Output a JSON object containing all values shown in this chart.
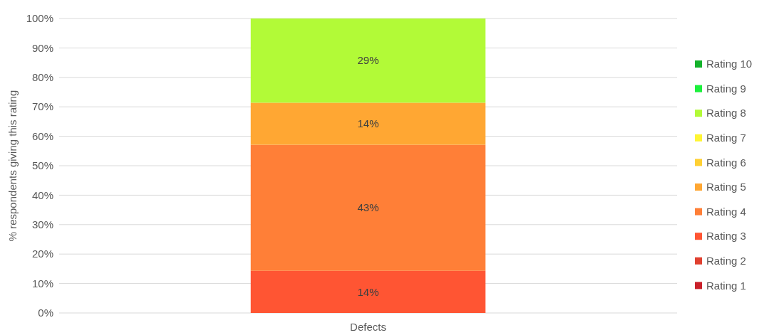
{
  "chart_data": {
    "type": "bar",
    "stacked": true,
    "ylabel": "% respondents giving this rating",
    "categories": [
      "Defects"
    ],
    "series": [
      {
        "name": "Rating 1",
        "color": "#c9202a",
        "values": [
          0
        ],
        "value_labels": [
          null
        ]
      },
      {
        "name": "Rating 2",
        "color": "#e0402f",
        "values": [
          0
        ],
        "value_labels": [
          null
        ]
      },
      {
        "name": "Rating 3",
        "color": "#ff5533",
        "values": [
          14.3
        ],
        "value_labels": [
          "14%"
        ]
      },
      {
        "name": "Rating 4",
        "color": "#ff7f37",
        "values": [
          42.8
        ],
        "value_labels": [
          "43%"
        ]
      },
      {
        "name": "Rating 5",
        "color": "#ffa733",
        "values": [
          14.3
        ],
        "value_labels": [
          "14%"
        ]
      },
      {
        "name": "Rating 6",
        "color": "#ffd033",
        "values": [
          0
        ],
        "value_labels": [
          null
        ]
      },
      {
        "name": "Rating 7",
        "color": "#fff533",
        "values": [
          0
        ],
        "value_labels": [
          null
        ]
      },
      {
        "name": "Rating 8",
        "color": "#b2fa37",
        "values": [
          28.6
        ],
        "value_labels": [
          "29%"
        ]
      },
      {
        "name": "Rating 9",
        "color": "#1cf03c",
        "values": [
          0
        ],
        "value_labels": [
          null
        ]
      },
      {
        "name": "Rating 10",
        "color": "#14b22b",
        "values": [
          0
        ],
        "value_labels": [
          null
        ]
      }
    ],
    "ylim": [
      0,
      100
    ],
    "yticks": [
      {
        "value": 0,
        "label": "0%"
      },
      {
        "value": 10,
        "label": "10%"
      },
      {
        "value": 20,
        "label": "20%"
      },
      {
        "value": 30,
        "label": "30%"
      },
      {
        "value": 40,
        "label": "40%"
      },
      {
        "value": 50,
        "label": "50%"
      },
      {
        "value": 60,
        "label": "60%"
      },
      {
        "value": 70,
        "label": "70%"
      },
      {
        "value": 80,
        "label": "80%"
      },
      {
        "value": 90,
        "label": "90%"
      },
      {
        "value": 100,
        "label": "100%"
      }
    ],
    "grid": "y",
    "legend": "right"
  }
}
